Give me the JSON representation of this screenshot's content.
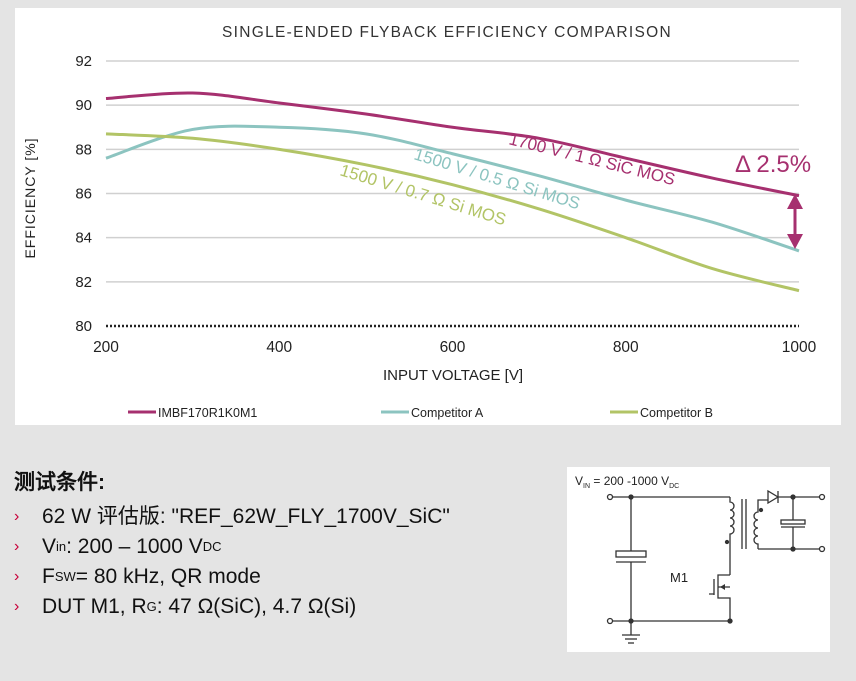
{
  "chart_data": {
    "type": "line",
    "title": "SINGLE-ENDED FLYBACK EFFICIENCY COMPARISON",
    "xlabel": "INPUT VOLTAGE [V]",
    "ylabel": "EFFICIENCY [%]",
    "xlim": [
      200,
      1000
    ],
    "ylim": [
      80,
      92
    ],
    "xticks": [
      "200",
      "400",
      "600",
      "800",
      "1000"
    ],
    "yticks": [
      "92",
      "90",
      "88",
      "86",
      "84",
      "82",
      "80"
    ],
    "grid": true,
    "legend_position": "bottom",
    "x": [
      200,
      300,
      400,
      500,
      600,
      700,
      800,
      900,
      1000
    ],
    "series": [
      {
        "name": "IMBF170R1K0M1",
        "annotation": "1700 V / 1 Ω SiC MOS",
        "color": "#a6306f",
        "values": [
          90.3,
          90.55,
          90.1,
          89.6,
          89.0,
          88.5,
          87.6,
          86.7,
          85.9
        ]
      },
      {
        "name": "Competitor A",
        "annotation": "1500 V / 0.5 Ω Si MOS",
        "color": "#8cc4c0",
        "values": [
          87.6,
          88.9,
          89.0,
          88.7,
          87.8,
          86.8,
          85.7,
          84.7,
          83.4
        ]
      },
      {
        "name": "Competitor B",
        "annotation": "1500 V / 0.7 Ω Si MOS",
        "color": "#b2c466",
        "values": [
          88.7,
          88.5,
          88.0,
          87.3,
          86.4,
          85.3,
          84.0,
          82.6,
          81.6
        ]
      }
    ],
    "delta_annotation": "Δ 2.5%"
  },
  "conditions": {
    "heading": "测试条件:",
    "items": [
      {
        "parts": [
          "62 W 评估版: \"REF_62W_FLY_1700V_SiC\""
        ]
      },
      {
        "main": "V",
        "sub": "in",
        "rest": ": 200 – 1000 V",
        "sub2": "DC"
      },
      {
        "main": "F",
        "sub": "SW",
        "rest": "= 80 kHz,  QR mode"
      },
      {
        "main": "DUT  M1, R",
        "sub": "G",
        "rest": ": 47 Ω(SiC), 4.7 Ω(Si)"
      }
    ]
  },
  "circuit": {
    "vin_label": "V",
    "vin_sub": "IN",
    "vin_value": " = 200 -1000 V",
    "vin_unit_sub": "DC",
    "transistor_label": "M1"
  }
}
